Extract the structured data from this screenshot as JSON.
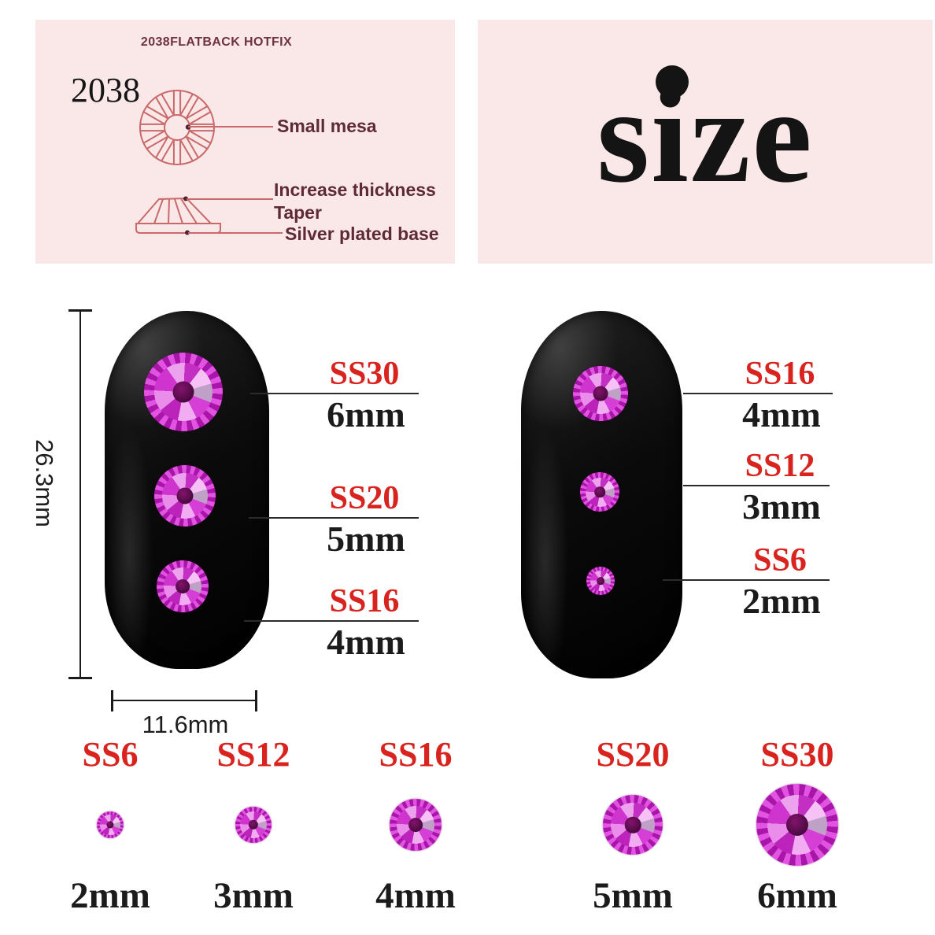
{
  "diagram_panel": {
    "title": "2038FLATBACK HOTFIX",
    "model": "2038",
    "labels": {
      "small_mesa": "Small mesa",
      "increase_thickness": "Increase thickness",
      "taper": "Taper",
      "silver_base": "Silver plated base"
    }
  },
  "size_panel": {
    "title": "size"
  },
  "measurements": {
    "nail_length": "26.3mm",
    "nail_width": "11.6mm"
  },
  "left_nail_callouts": [
    {
      "ss": "SS30",
      "mm": "6mm"
    },
    {
      "ss": "SS20",
      "mm": "5mm"
    },
    {
      "ss": "SS16",
      "mm": "4mm"
    }
  ],
  "right_nail_callouts": [
    {
      "ss": "SS16",
      "mm": "4mm"
    },
    {
      "ss": "SS12",
      "mm": "3mm"
    },
    {
      "ss": "SS6",
      "mm": "2mm"
    }
  ],
  "size_row": [
    {
      "ss": "SS6",
      "mm": "2mm"
    },
    {
      "ss": "SS12",
      "mm": "3mm"
    },
    {
      "ss": "SS16",
      "mm": "4mm"
    },
    {
      "ss": "SS20",
      "mm": "5mm"
    },
    {
      "ss": "SS30",
      "mm": "6mm"
    }
  ],
  "colors": {
    "panel_pink": "#fae8e8",
    "accent_red": "#d8231f",
    "maroon_label": "#5e2a36",
    "diagram_line": "#c9696a",
    "stone_magenta": "#cc2fcc"
  }
}
